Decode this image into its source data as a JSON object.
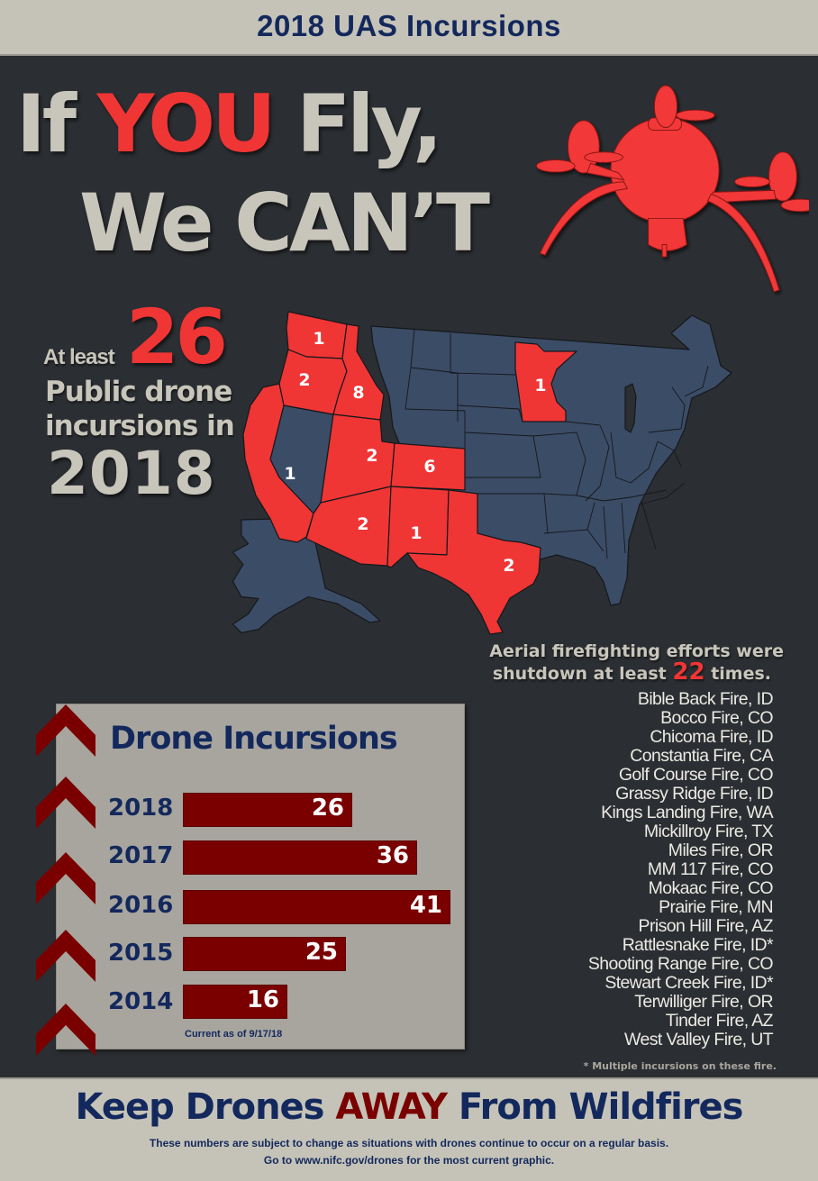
{
  "header": {
    "title": "2018 UAS Incursions"
  },
  "headline": {
    "line1_part1": "If ",
    "line1_highlight": "YOU",
    "line1_part2": " Fly,",
    "line2": "We CAN’T"
  },
  "stat": {
    "prefix": "At least",
    "count": "26",
    "line1": "Public drone",
    "line2": "incursions in",
    "year": "2018"
  },
  "map": {
    "highlight_color": "#f03535",
    "base_color": "#3b4c66",
    "states": [
      {
        "state": "WA",
        "count": "1"
      },
      {
        "state": "OR",
        "count": "2"
      },
      {
        "state": "ID",
        "count": "8"
      },
      {
        "state": "CA",
        "count": "1"
      },
      {
        "state": "UT",
        "count": "2"
      },
      {
        "state": "CO",
        "count": "6"
      },
      {
        "state": "AZ",
        "count": "2"
      },
      {
        "state": "NM",
        "count": "1"
      },
      {
        "state": "TX",
        "count": "2"
      },
      {
        "state": "MN",
        "count": "1"
      }
    ]
  },
  "aerial": {
    "line1": "Aerial firefighting efforts were",
    "line2_prefix": "shutdown at least ",
    "line2_count": "22",
    "line2_suffix": " times."
  },
  "fires": [
    "Bible Back Fire, ID",
    "Bocco Fire, CO",
    "Chicoma Fire, ID",
    "Constantia Fire, CA",
    "Golf Course Fire, CO",
    "Grassy Ridge Fire, ID",
    "Kings Landing Fire, WA",
    "Mickillroy Fire, TX",
    "Miles Fire, OR",
    "MM 117 Fire, CO",
    "Mokaac Fire, CO",
    "Prairie Fire, MN",
    "Prison Hill Fire, AZ",
    "Rattlesnake Fire, ID*",
    "Shooting Range Fire, CO",
    "Stewart Creek Fire, ID*",
    "Terwilliger Fire, OR",
    "Tinder Fire, AZ",
    "West Valley Fire, UT"
  ],
  "fires_footnote": "* Multiple incursions on these fire.",
  "chart_data": {
    "type": "bar",
    "orientation": "horizontal",
    "title": "Drone Incursions",
    "categories": [
      "2018",
      "2017",
      "2016",
      "2015",
      "2014"
    ],
    "values": [
      26,
      36,
      41,
      25,
      16
    ],
    "value_labels": [
      "26",
      "36",
      "41",
      "25",
      "16"
    ],
    "xlim": [
      0,
      45
    ],
    "xlabel": "",
    "ylabel": "",
    "grid": false,
    "bar_color": "#7a0000",
    "note": "Current as of 9/17/18"
  },
  "footer": {
    "slogan_part1": "Keep Drones ",
    "slogan_highlight": "AWAY",
    "slogan_part2": " From Wildfires",
    "disclaimer1": "These numbers are subject to change as situations with drones continue to occur on a regular basis.",
    "disclaimer2": "Go to www.nifc.gov/drones for the most current graphic."
  },
  "colors": {
    "navy": "#13285c",
    "red": "#f03535",
    "maroon": "#7a0000",
    "beige": "#c5c3b8",
    "dark": "#2b2e32"
  }
}
